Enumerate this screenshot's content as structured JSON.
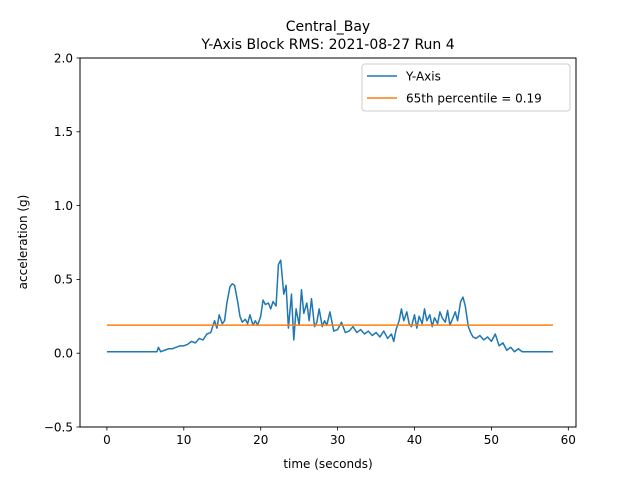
{
  "chart_data": {
    "type": "line",
    "title": "Central_Bay",
    "subtitle": "Y-Axis Block RMS: 2021-08-27 Run 4",
    "xlabel": "time (seconds)",
    "ylabel": "acceleration (g)",
    "xlim": [
      -3.5,
      61
    ],
    "ylim": [
      -0.5,
      2.0
    ],
    "xticks": [
      0,
      10,
      20,
      30,
      40,
      50,
      60
    ],
    "xtick_labels": [
      "0",
      "10",
      "20",
      "30",
      "40",
      "50",
      "60"
    ],
    "yticks": [
      -0.5,
      0.0,
      0.5,
      1.0,
      1.5,
      2.0
    ],
    "ytick_labels": [
      "−0.5",
      "0.0",
      "0.5",
      "1.0",
      "1.5",
      "2.0"
    ],
    "grid": false,
    "legend_position": "upper right",
    "series": [
      {
        "name": "Y-Axis",
        "color": "#1f77b4",
        "x": [
          0,
          1,
          2,
          3,
          4,
          5,
          6,
          6.5,
          6.7,
          7,
          7.5,
          8,
          8.5,
          9,
          9.5,
          10,
          10.5,
          11,
          11.5,
          12,
          12.5,
          13,
          13.5,
          14,
          14.3,
          14.6,
          15,
          15.3,
          15.6,
          16,
          16.3,
          16.6,
          17,
          17.3,
          17.6,
          18,
          18.3,
          18.6,
          19,
          19.3,
          19.6,
          20,
          20.3,
          20.6,
          21,
          21.3,
          21.6,
          22,
          22.3,
          22.6,
          23,
          23.3,
          23.6,
          24,
          24.3,
          24.6,
          25,
          25.3,
          25.6,
          26,
          26.3,
          26.6,
          27,
          27.3,
          27.6,
          28,
          28.3,
          28.6,
          29,
          29.5,
          30,
          30.5,
          31,
          31.5,
          32,
          32.5,
          33,
          33.5,
          34,
          34.5,
          35,
          35.5,
          36,
          36.5,
          37,
          37.3,
          37.6,
          38,
          38.3,
          38.6,
          39,
          39.3,
          39.6,
          40,
          40.3,
          40.6,
          41,
          41.3,
          41.6,
          42,
          42.3,
          42.6,
          43,
          43.3,
          43.6,
          44,
          44.3,
          44.6,
          45,
          45.3,
          45.6,
          46,
          46.3,
          46.6,
          47,
          47.3,
          47.6,
          48,
          48.5,
          49,
          49.5,
          50,
          50.5,
          51,
          51.5,
          52,
          52.5,
          53,
          53.5,
          54,
          55,
          56,
          57,
          58
        ],
        "y": [
          0.01,
          0.01,
          0.01,
          0.01,
          0.01,
          0.01,
          0.01,
          0.01,
          0.04,
          0.01,
          0.02,
          0.03,
          0.03,
          0.04,
          0.05,
          0.05,
          0.06,
          0.08,
          0.07,
          0.1,
          0.09,
          0.13,
          0.14,
          0.22,
          0.17,
          0.26,
          0.2,
          0.22,
          0.34,
          0.45,
          0.47,
          0.46,
          0.35,
          0.25,
          0.21,
          0.23,
          0.2,
          0.26,
          0.19,
          0.22,
          0.19,
          0.25,
          0.36,
          0.33,
          0.34,
          0.3,
          0.35,
          0.32,
          0.6,
          0.63,
          0.4,
          0.46,
          0.17,
          0.4,
          0.09,
          0.3,
          0.19,
          0.43,
          0.27,
          0.34,
          0.22,
          0.37,
          0.18,
          0.21,
          0.3,
          0.18,
          0.22,
          0.19,
          0.28,
          0.15,
          0.16,
          0.21,
          0.14,
          0.15,
          0.18,
          0.14,
          0.16,
          0.13,
          0.15,
          0.12,
          0.14,
          0.11,
          0.15,
          0.1,
          0.13,
          0.08,
          0.16,
          0.22,
          0.3,
          0.22,
          0.28,
          0.2,
          0.18,
          0.26,
          0.17,
          0.25,
          0.2,
          0.3,
          0.22,
          0.26,
          0.18,
          0.24,
          0.2,
          0.28,
          0.24,
          0.21,
          0.29,
          0.19,
          0.24,
          0.28,
          0.22,
          0.35,
          0.38,
          0.32,
          0.18,
          0.14,
          0.11,
          0.1,
          0.12,
          0.09,
          0.11,
          0.08,
          0.13,
          0.05,
          0.07,
          0.02,
          0.04,
          0.01,
          0.03,
          0.01,
          0.01,
          0.01,
          0.01,
          0.01
        ]
      },
      {
        "name": "65th percentile = 0.19",
        "color": "#ff7f0e",
        "x": [
          0,
          58
        ],
        "y": [
          0.19,
          0.19
        ]
      }
    ]
  }
}
